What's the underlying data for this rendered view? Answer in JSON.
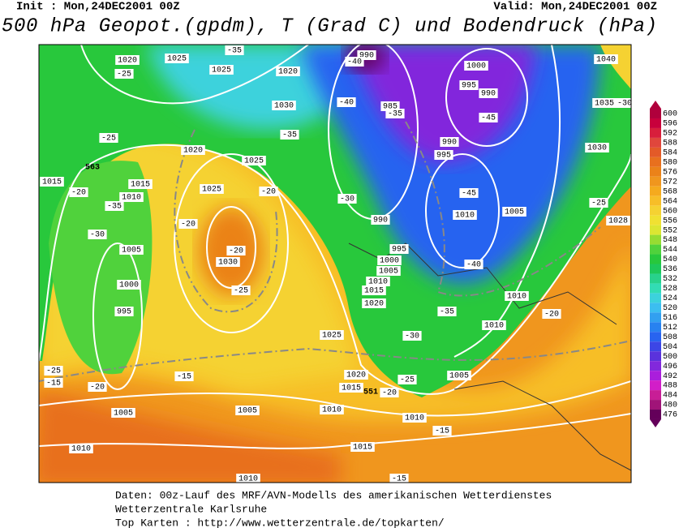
{
  "header": {
    "init": "Init : Mon,24DEC2001 00Z",
    "valid": "Valid: Mon,24DEC2001 00Z",
    "title": "500 hPa Geopot.(gpdm), T (Grad C) und Bodendruck (hPa)"
  },
  "colorbar": {
    "ticks": [
      600,
      596,
      592,
      588,
      584,
      580,
      576,
      572,
      568,
      564,
      560,
      556,
      552,
      548,
      544,
      540,
      536,
      532,
      528,
      524,
      520,
      516,
      512,
      508,
      504,
      500,
      496,
      492,
      488,
      484,
      480,
      476
    ],
    "colors": [
      "#b0003c",
      "#c8003c",
      "#d81e3c",
      "#e0463c",
      "#e35a28",
      "#e8701e",
      "#eb8219",
      "#f0961e",
      "#f5aa1e",
      "#f7be28",
      "#f5d232",
      "#f0e132",
      "#dce632",
      "#96dc32",
      "#50d23c",
      "#28c83c",
      "#1ec85a",
      "#28d28c",
      "#32dcb4",
      "#3cd2dc",
      "#3cbef0",
      "#32a0f0",
      "#2882f0",
      "#2864f0",
      "#3c46e6",
      "#5a32dc",
      "#8228dc",
      "#aa1edc",
      "#d21ec8",
      "#c81e96",
      "#a01478",
      "#64005a"
    ]
  },
  "map_labels": [
    "1020",
    "1025",
    "-35",
    "1025",
    "1020",
    "990",
    "-40",
    "1000",
    "1040",
    "-25",
    "995",
    "990",
    "1030",
    "985",
    "-40",
    "-35",
    "-45",
    "1035",
    "-30",
    "-25",
    "-35",
    "990",
    "1020",
    "1025",
    "995",
    "1030",
    "563",
    "1015",
    "-20",
    "1015",
    "1010",
    "1025",
    "-20",
    "-30",
    "-45",
    "1010",
    "1005",
    "-25",
    "-35",
    "-30",
    "-20",
    "990",
    "1028",
    "-20",
    "1030",
    "1005",
    "995",
    "1000",
    "1005",
    "1010",
    "-40",
    "1000",
    "-25",
    "1015",
    "1020",
    "995",
    "1010",
    "-35",
    "-20",
    "1025",
    "-30",
    "1010",
    "-25",
    "1020",
    "-25",
    "1005",
    "-15",
    "-20",
    "1015",
    "551",
    "-20",
    "-15",
    "1005",
    "1005",
    "1010",
    "1010",
    "-15",
    "1010",
    "1015",
    "1010",
    "-15"
  ],
  "footer": {
    "lines": [
      "Daten: 00z-Lauf des MRF/AVN-Modells des amerikanischen Wetterdienstes",
      "Wetterzentrale Karlsruhe",
      "Top Karten :  http://www.wetterzentrale.de/topkarten/"
    ]
  }
}
